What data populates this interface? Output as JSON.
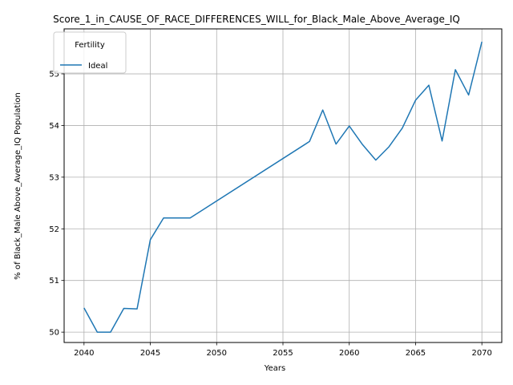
{
  "chart_data": {
    "type": "line",
    "title": "Score_1_in_CAUSE_OF_RACE_DIFFERENCES_WILL_for_Black_Male_Above_Average_IQ",
    "xlabel": "Years",
    "ylabel": "% of Black_Male Above_Average_IQ Population",
    "xlim": [
      2038.5,
      2071.5
    ],
    "ylim": [
      49.8,
      55.87
    ],
    "xticks": [
      2040,
      2045,
      2050,
      2055,
      2060,
      2065,
      2070
    ],
    "yticks": [
      50,
      51,
      52,
      53,
      54,
      55
    ],
    "grid": true,
    "legend": {
      "title": "Fertility",
      "position": "top-left"
    },
    "series": [
      {
        "name": "Ideal",
        "color": "#1f77b4",
        "x": [
          2040,
          2041,
          2042,
          2043,
          2044,
          2045,
          2046,
          2047,
          2048,
          2057,
          2058,
          2059,
          2060,
          2061,
          2062,
          2063,
          2064,
          2065,
          2066,
          2067,
          2068,
          2069,
          2070
        ],
        "y": [
          50.47,
          50.0,
          50.0,
          50.46,
          50.45,
          51.79,
          52.21,
          52.21,
          52.21,
          53.69,
          54.3,
          53.64,
          53.99,
          53.63,
          53.33,
          53.59,
          53.95,
          54.49,
          54.78,
          53.7,
          55.08,
          54.59,
          55.62
        ]
      }
    ]
  }
}
